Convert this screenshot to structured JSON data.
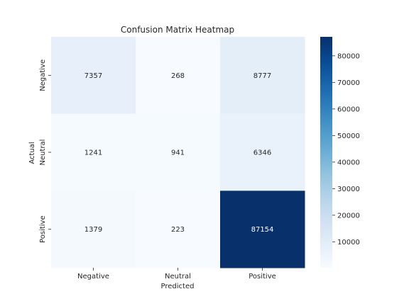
{
  "chart_data": {
    "type": "heatmap",
    "title": "Confusion Matrix Heatmap",
    "xlabel": "Predicted",
    "ylabel": "Actual",
    "x_categories": [
      "Negative",
      "Neutral",
      "Positive"
    ],
    "y_categories": [
      "Negative",
      "Neutral",
      "Positive"
    ],
    "values": [
      [
        7357,
        268,
        8777
      ],
      [
        1241,
        941,
        6346
      ],
      [
        1379,
        223,
        87154
      ]
    ],
    "colormap": "Blues",
    "colorbar": {
      "range": [
        223,
        87154
      ],
      "ticks": [
        10000,
        20000,
        30000,
        40000,
        50000,
        60000,
        70000,
        80000
      ],
      "tick_labels": [
        "10000",
        "20000",
        "30000",
        "40000",
        "50000",
        "60000",
        "70000",
        "80000"
      ]
    },
    "colors": {
      "low": "#f7fbff",
      "high": "#08306b",
      "text_dark": "#262626",
      "text_light": "#ffffff"
    }
  }
}
